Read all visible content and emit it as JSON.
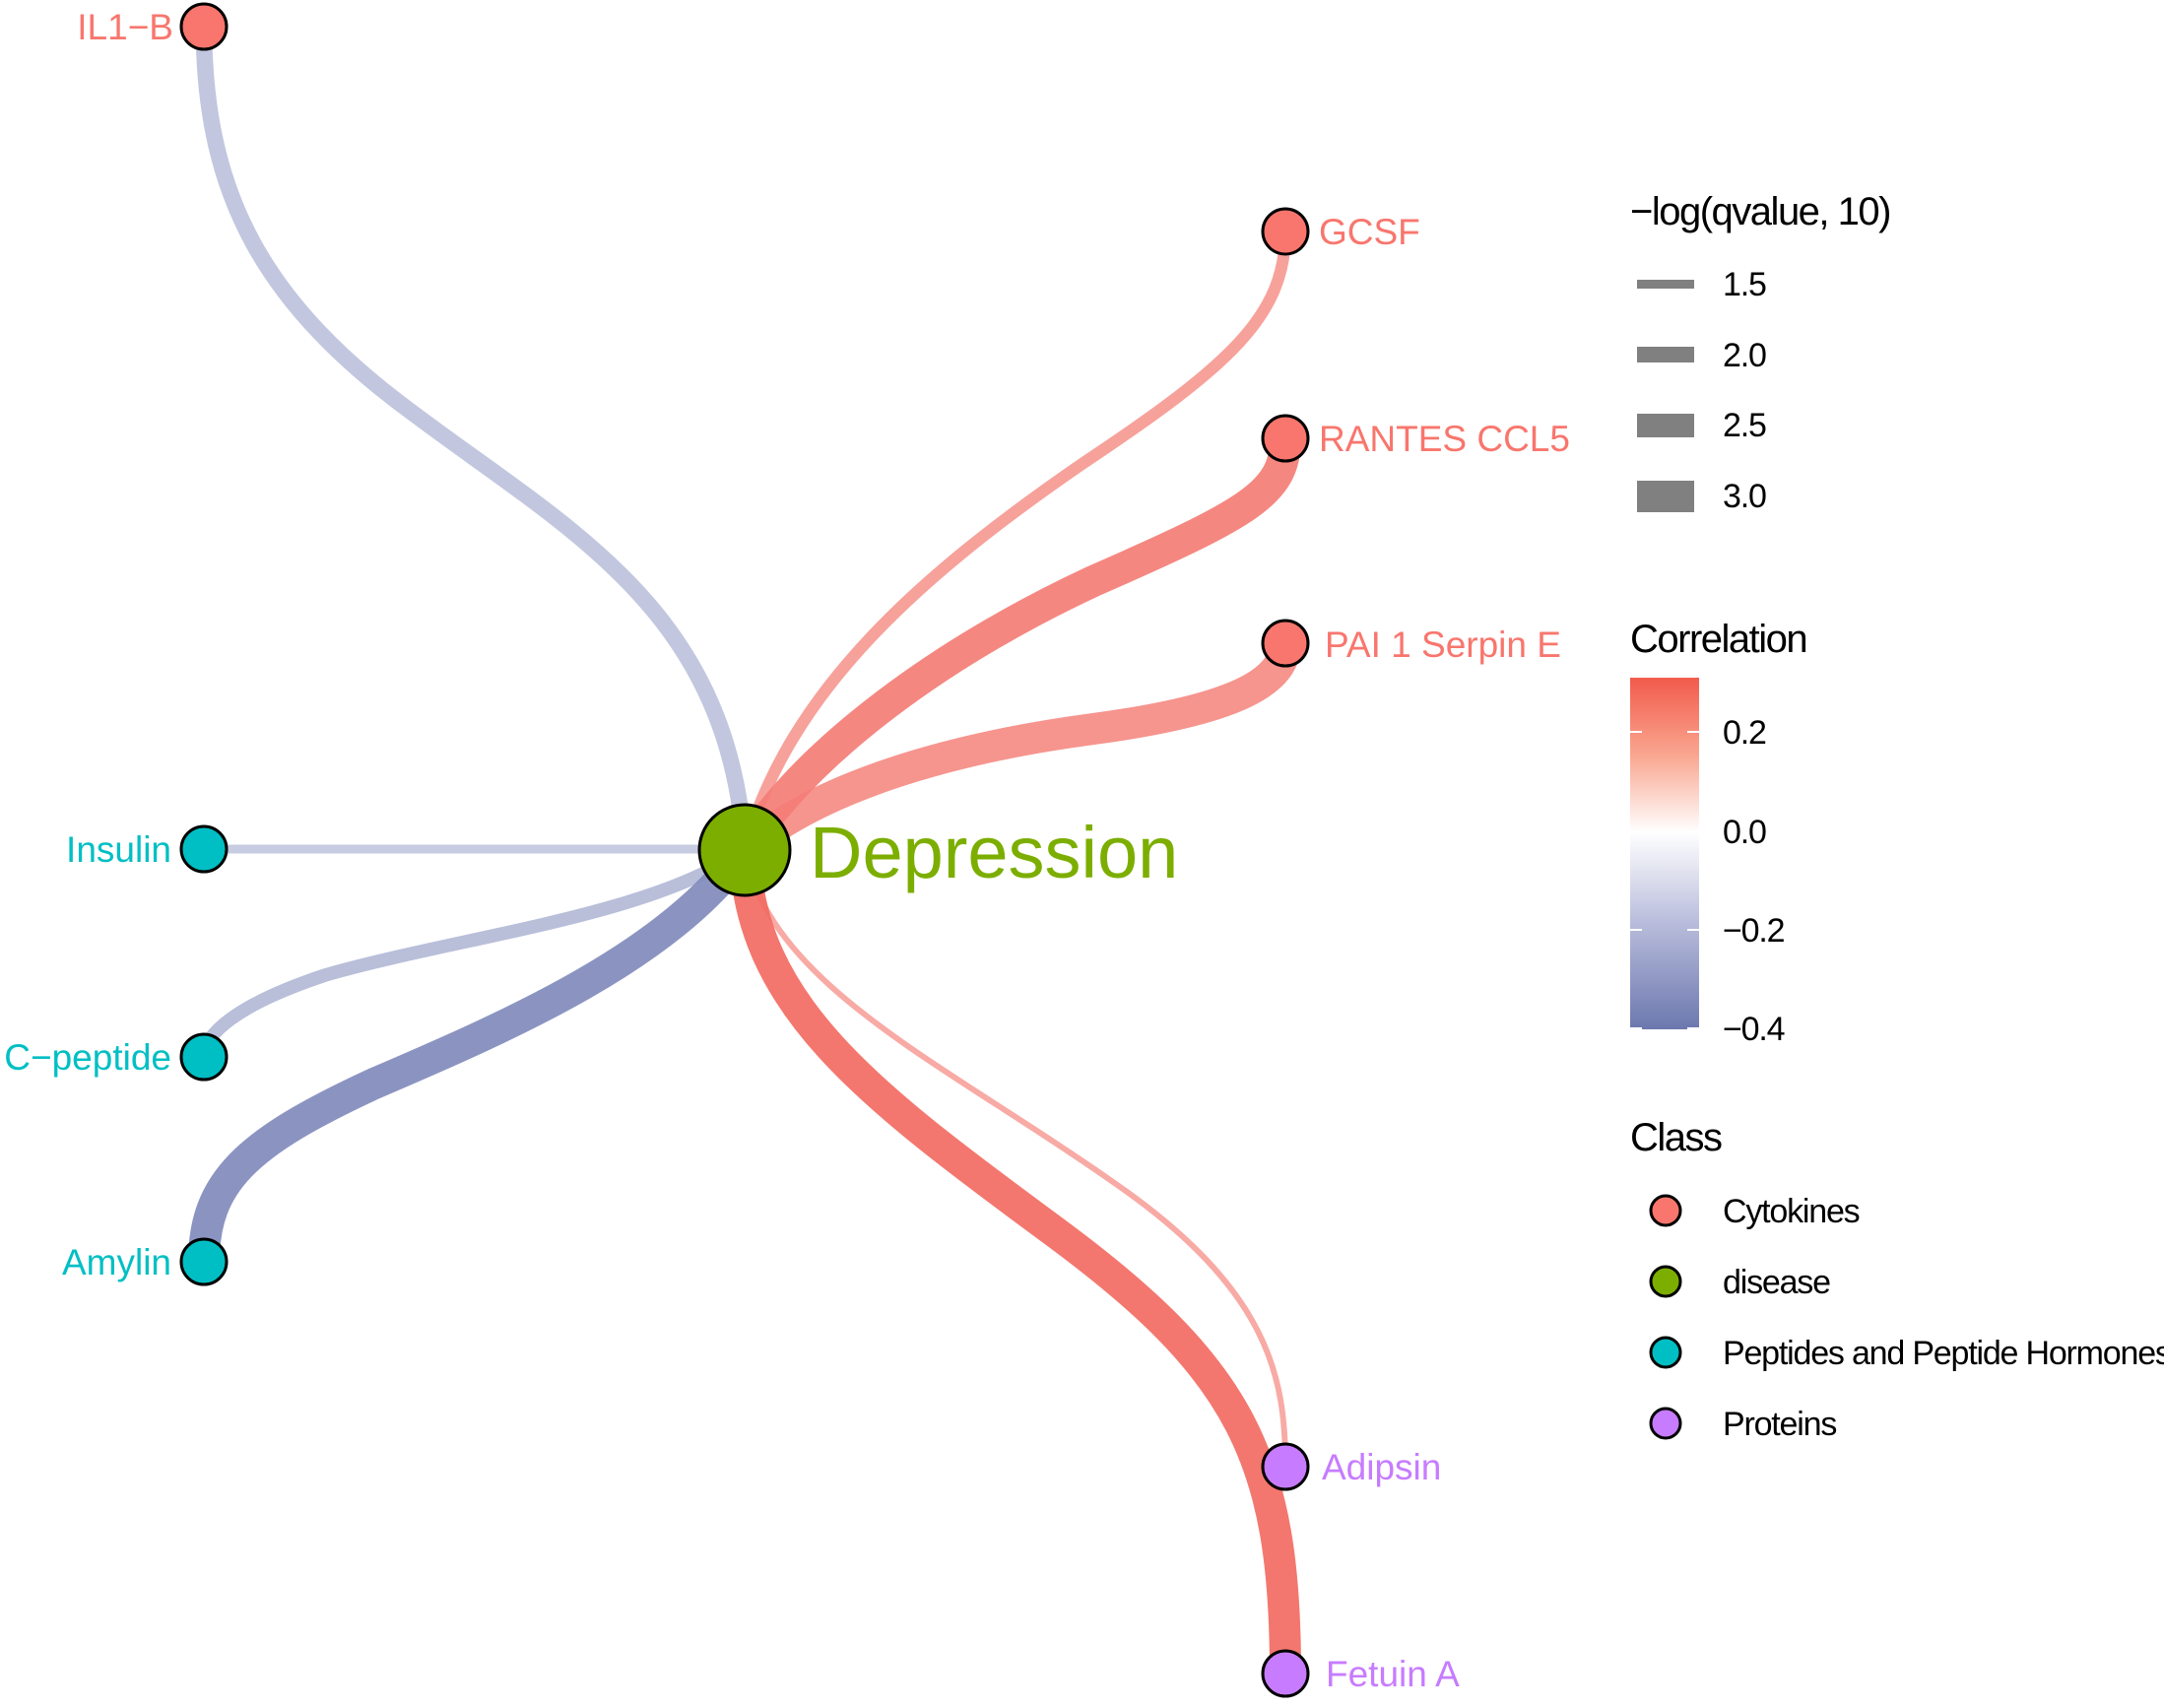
{
  "colors": {
    "cytokines": "#f8766d",
    "disease": "#7cae00",
    "peptides": "#00bfc4",
    "proteins": "#c77cff",
    "positive": "#f8766d",
    "negative": "#7a85b8"
  },
  "hub": {
    "label": "Depression",
    "class": "disease"
  },
  "nodes": [
    {
      "label": "IL1−B",
      "class": "cytokines",
      "correlation": -0.2,
      "neglogq": 2.0
    },
    {
      "label": "GCSF",
      "class": "cytokines",
      "correlation": 0.22,
      "neglogq": 1.7
    },
    {
      "label": "RANTES CCL5",
      "class": "cytokines",
      "correlation": 0.28,
      "neglogq": 3.0
    },
    {
      "label": "PAI 1 Serpin E",
      "class": "cytokines",
      "correlation": 0.25,
      "neglogq": 3.0
    },
    {
      "label": "Insulin",
      "class": "peptides",
      "correlation": -0.18,
      "neglogq": 1.5
    },
    {
      "label": "C−peptide",
      "class": "peptides",
      "correlation": -0.23,
      "neglogq": 1.8
    },
    {
      "label": "Amylin",
      "class": "peptides",
      "correlation": -0.38,
      "neglogq": 3.0
    },
    {
      "label": "Adipsin",
      "class": "proteins",
      "correlation": 0.2,
      "neglogq": 1.3
    },
    {
      "label": "Fetuin A",
      "class": "proteins",
      "correlation": 0.32,
      "neglogq": 3.0
    }
  ],
  "legend": {
    "width": {
      "title": "−log(qvalue, 10)",
      "items": [
        "1.5",
        "2.0",
        "2.5",
        "3.0"
      ]
    },
    "correlation": {
      "title": "Correlation",
      "ticks": [
        "0.2",
        "0.0",
        "−0.2",
        "−0.4"
      ]
    },
    "class": {
      "title": "Class",
      "items": [
        {
          "label": "Cytokines",
          "color": "#f8766d"
        },
        {
          "label": "disease",
          "color": "#7cae00"
        },
        {
          "label": "Peptides and Peptide Hormones",
          "color": "#00bfc4"
        },
        {
          "label": "Proteins",
          "color": "#c77cff"
        }
      ]
    }
  }
}
